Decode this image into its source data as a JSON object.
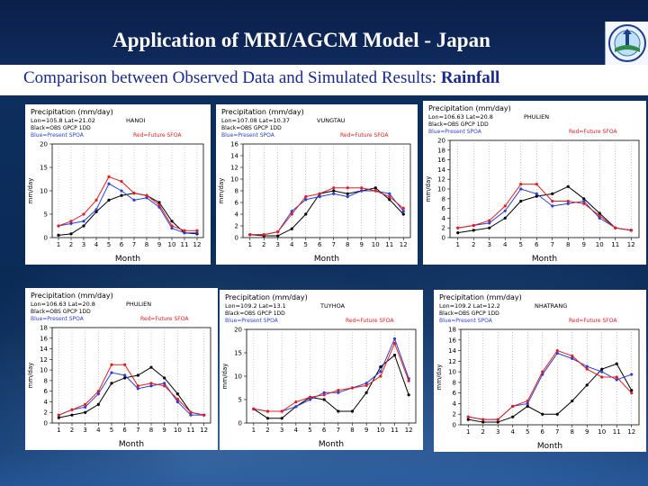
{
  "header": {
    "title": "Application of MRI/AGCM Model -  Japan",
    "subtitle_main": "Comparison between Observed Data and Simulated Results: ",
    "subtitle_emph": "Rainfall",
    "logo_icon": "organization-logo-icon"
  },
  "colors": {
    "observed": "#000000",
    "present": "#2b3fd6",
    "future": "#e02020",
    "title_bg": "#0b1f4a",
    "subtitle_text": "#1a2a8a"
  },
  "chart_data": [
    {
      "type": "line",
      "title": "Precipitation  (mm/day)",
      "location_line": "Lon=105.8   Lat=21.02",
      "station": "HANOI",
      "legend_black": "Black=OBS  GPCP  1DD",
      "legend_blue": "Blue=Present  SPOA",
      "legend_red": "Red=Future  SFOA",
      "xlabel": "Month",
      "ylabel": "mm/day",
      "x": [
        1,
        2,
        3,
        4,
        5,
        6,
        7,
        8,
        9,
        10,
        11,
        12
      ],
      "ylim": [
        0,
        20
      ],
      "yticks": [
        0,
        5,
        10,
        15,
        20
      ],
      "series": [
        {
          "name": "Observed",
          "color": "black",
          "values": [
            0.5,
            0.8,
            2.5,
            5.5,
            8.0,
            9.0,
            9.5,
            9.0,
            7.5,
            3.5,
            1.0,
            0.8
          ]
        },
        {
          "name": "Present",
          "color": "blue",
          "values": [
            2.5,
            3.0,
            3.5,
            6.0,
            11.5,
            10.0,
            8.0,
            8.5,
            6.5,
            2.0,
            1.0,
            1.0
          ]
        },
        {
          "name": "Future",
          "color": "red",
          "values": [
            2.5,
            3.5,
            5.0,
            8.0,
            13.0,
            12.0,
            9.5,
            9.0,
            7.0,
            2.5,
            1.5,
            1.5
          ]
        }
      ]
    },
    {
      "type": "line",
      "title": "Precipitation  (mm/day)",
      "location_line": "Lon=107.08   Lat=10.37",
      "station": "VUNGTAU",
      "legend_black": "Black=OBS  GPCP  1DD",
      "legend_blue": "Blue=Present  SPOA",
      "legend_red": "Red=Future  SFOA",
      "xlabel": "Month",
      "ylabel": "mm/day",
      "x": [
        1,
        2,
        3,
        4,
        5,
        6,
        7,
        8,
        9,
        10,
        11,
        12
      ],
      "ylim": [
        0,
        16
      ],
      "yticks": [
        0,
        2,
        4,
        6,
        8,
        10,
        12,
        14,
        16
      ],
      "series": [
        {
          "name": "Observed",
          "color": "black",
          "values": [
            0.5,
            0.3,
            0.3,
            1.5,
            4.0,
            7.5,
            8.0,
            7.5,
            8.0,
            8.5,
            6.5,
            4.0
          ]
        },
        {
          "name": "Present",
          "color": "blue",
          "values": [
            0.5,
            0.5,
            1.0,
            4.5,
            6.5,
            7.0,
            7.5,
            7.0,
            8.0,
            8.0,
            7.5,
            4.5
          ]
        },
        {
          "name": "Future",
          "color": "red",
          "values": [
            0.5,
            0.5,
            1.0,
            4.0,
            7.0,
            7.5,
            8.5,
            8.5,
            8.5,
            8.0,
            7.0,
            5.0
          ]
        }
      ]
    },
    {
      "type": "line",
      "title": "Precipitation  (mm/day)",
      "location_line": "Lon=106.63   Lat=20.8",
      "station": "PHULIEN",
      "legend_black": "Black=OBS  GPCP  1DD",
      "legend_blue": "Blue=Present  SPOA",
      "legend_red": "Red=Future  SFOA",
      "xlabel": "Month",
      "ylabel": "mm/day",
      "x": [
        1,
        2,
        3,
        4,
        5,
        6,
        7,
        8,
        9,
        10,
        11,
        12
      ],
      "ylim": [
        0,
        20
      ],
      "yticks": [
        0,
        2,
        4,
        6,
        8,
        10,
        12,
        14,
        16,
        18,
        20
      ],
      "series": [
        {
          "name": "Observed",
          "color": "black",
          "values": [
            1.0,
            1.5,
            2.0,
            4.0,
            7.5,
            8.5,
            9.0,
            10.5,
            8.0,
            5.0,
            2.0,
            1.5
          ]
        },
        {
          "name": "Present",
          "color": "blue",
          "values": [
            2.0,
            2.5,
            3.0,
            5.5,
            10.0,
            9.0,
            6.5,
            7.0,
            7.5,
            4.0,
            2.0,
            1.5
          ]
        },
        {
          "name": "Future",
          "color": "red",
          "values": [
            2.0,
            2.5,
            3.5,
            6.5,
            11.0,
            11.0,
            7.5,
            7.5,
            7.0,
            4.5,
            2.0,
            1.5
          ]
        }
      ]
    },
    {
      "type": "line",
      "title": "Precipitation  (mm/day)",
      "location_line": "Lon=106.63   Lat=20.8",
      "station": "PHULIEN",
      "legend_black": "Black=OBS  GPCP  1DD",
      "legend_blue": "Blue=Present  SPOA",
      "legend_red": "Red=Future  SFOA",
      "xlabel": "Month",
      "ylabel": "mm/day",
      "x": [
        1,
        2,
        3,
        4,
        5,
        6,
        7,
        8,
        9,
        10,
        11,
        12
      ],
      "ylim": [
        0,
        18
      ],
      "yticks": [
        0,
        2,
        4,
        6,
        8,
        10,
        12,
        14,
        16,
        18
      ],
      "series": [
        {
          "name": "Observed",
          "color": "black",
          "values": [
            1.0,
            1.5,
            2.0,
            3.5,
            7.5,
            8.5,
            9.0,
            10.5,
            8.5,
            5.5,
            2.0,
            1.5
          ]
        },
        {
          "name": "Present",
          "color": "blue",
          "values": [
            1.5,
            2.5,
            3.0,
            5.5,
            9.5,
            9.0,
            6.5,
            7.0,
            7.5,
            4.0,
            1.5,
            1.5
          ]
        },
        {
          "name": "Future",
          "color": "red",
          "values": [
            1.5,
            2.5,
            3.5,
            6.0,
            11.0,
            11.0,
            7.0,
            7.5,
            7.0,
            4.5,
            2.0,
            1.5
          ]
        }
      ]
    },
    {
      "type": "line",
      "title": "Precipitation  (mm/day)",
      "location_line": "Lon=109.2   Lat=13.1",
      "station": "TUYHOA",
      "legend_black": "Black=OBS  GPCP  1DD",
      "legend_blue": "Blue=Present  SPOA",
      "legend_red": "Red=Future  SFOA",
      "xlabel": "Month",
      "ylabel": "mm/day",
      "x": [
        1,
        2,
        3,
        4,
        5,
        6,
        7,
        8,
        9,
        10,
        11,
        12
      ],
      "ylim": [
        0,
        20
      ],
      "yticks": [
        0,
        5,
        10,
        15,
        20
      ],
      "series": [
        {
          "name": "Observed",
          "color": "black",
          "values": [
            3.0,
            1.0,
            1.0,
            3.5,
            5.5,
            5.0,
            2.5,
            2.5,
            6.5,
            12.0,
            14.5,
            6.0
          ]
        },
        {
          "name": "Present",
          "color": "blue",
          "values": [
            3.0,
            2.5,
            2.5,
            3.5,
            5.0,
            6.5,
            6.5,
            7.5,
            8.5,
            11.0,
            18.0,
            9.5
          ]
        },
        {
          "name": "Future",
          "color": "red",
          "values": [
            3.0,
            2.5,
            2.5,
            4.5,
            5.5,
            6.0,
            7.0,
            7.5,
            8.0,
            10.0,
            17.0,
            9.0
          ]
        }
      ]
    },
    {
      "type": "line",
      "title": "Precipitation  (mm/day)",
      "location_line": "Lon=109.2   Lat=12.2",
      "station": "NHATRANG",
      "legend_black": "Black=OBS  GPCP  1DD",
      "legend_blue": "Blue=Present  SPOA",
      "legend_red": "Red=Future  SFOA",
      "xlabel": "Month",
      "ylabel": "mm/day",
      "x": [
        1,
        2,
        3,
        4,
        5,
        6,
        7,
        8,
        9,
        10,
        11,
        12
      ],
      "ylim": [
        0,
        18
      ],
      "yticks": [
        0,
        2,
        4,
        6,
        8,
        10,
        12,
        14,
        16,
        18
      ],
      "series": [
        {
          "name": "Observed",
          "color": "black",
          "values": [
            1.0,
            0.5,
            0.5,
            1.5,
            3.5,
            2.0,
            2.0,
            4.5,
            7.5,
            10.5,
            11.5,
            6.5
          ]
        },
        {
          "name": "Present",
          "color": "blue",
          "values": [
            1.5,
            1.0,
            1.0,
            3.5,
            4.0,
            9.5,
            13.5,
            12.5,
            11.0,
            10.0,
            8.5,
            9.5
          ]
        },
        {
          "name": "Future",
          "color": "red",
          "values": [
            1.5,
            1.0,
            1.0,
            3.5,
            4.5,
            10.0,
            14.0,
            13.0,
            10.5,
            9.0,
            9.0,
            6.0
          ]
        }
      ]
    }
  ]
}
